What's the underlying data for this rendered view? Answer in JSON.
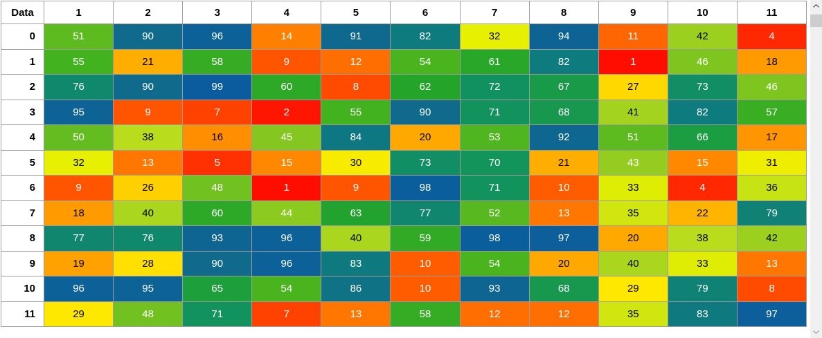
{
  "grid": {
    "corner_label": "Data",
    "column_headers": [
      "1",
      "2",
      "3",
      "4",
      "5",
      "6",
      "7",
      "8",
      "9",
      "10",
      "11"
    ],
    "row_headers": [
      "0",
      "1",
      "2",
      "3",
      "4",
      "5",
      "6",
      "7",
      "8",
      "9",
      "10",
      "11"
    ],
    "values": [
      [
        51,
        90,
        96,
        14,
        91,
        82,
        32,
        94,
        11,
        42,
        4
      ],
      [
        55,
        21,
        58,
        9,
        12,
        54,
        61,
        82,
        1,
        46,
        18
      ],
      [
        76,
        90,
        99,
        60,
        8,
        62,
        72,
        67,
        27,
        73,
        46
      ],
      [
        95,
        9,
        7,
        2,
        55,
        90,
        71,
        68,
        41,
        82,
        57
      ],
      [
        50,
        38,
        16,
        45,
        84,
        20,
        53,
        92,
        51,
        66,
        17
      ],
      [
        32,
        13,
        5,
        15,
        30,
        73,
        70,
        21,
        43,
        15,
        31
      ],
      [
        9,
        26,
        48,
        1,
        9,
        98,
        71,
        10,
        33,
        4,
        36
      ],
      [
        18,
        40,
        60,
        44,
        63,
        77,
        52,
        13,
        35,
        22,
        79
      ],
      [
        77,
        76,
        93,
        96,
        40,
        59,
        98,
        97,
        20,
        38,
        42
      ],
      [
        19,
        28,
        90,
        96,
        83,
        10,
        54,
        20,
        40,
        33,
        13
      ],
      [
        96,
        95,
        65,
        54,
        86,
        10,
        93,
        68,
        29,
        79,
        8
      ],
      [
        29,
        48,
        71,
        7,
        13,
        58,
        12,
        12,
        35,
        83,
        97
      ]
    ]
  },
  "heatmap": {
    "scale_stops": [
      {
        "value": 0,
        "color": "#FF0500"
      },
      {
        "value": 15,
        "color": "#FF8800"
      },
      {
        "value": 25,
        "color": "#FFC800"
      },
      {
        "value": 29,
        "color": "#FFE800"
      },
      {
        "value": 32,
        "color": "#E7F000"
      },
      {
        "value": 38,
        "color": "#B9DC1C"
      },
      {
        "value": 45,
        "color": "#85C720"
      },
      {
        "value": 55,
        "color": "#43B21F"
      },
      {
        "value": 62,
        "color": "#24A52A"
      },
      {
        "value": 70,
        "color": "#12945A"
      },
      {
        "value": 82,
        "color": "#0E7C7E"
      },
      {
        "value": 90,
        "color": "#0F6A8C"
      },
      {
        "value": 99,
        "color": "#0B5C9E"
      }
    ],
    "dark_text_value_range": [
      16,
      42
    ],
    "dark_text_color": "#000000",
    "light_text_color": "#FFFFFF"
  },
  "colors": {
    "grid_line": "#9D9D9D",
    "header_bg": "#FFFFFF",
    "header_text": "#000000",
    "pane_bg": "#FFFFFF"
  },
  "scrollbar": {
    "up_icon": "chevron-up",
    "down_icon": "chevron-down",
    "track_color": "#F0F0F0",
    "thumb_color": "#CDCDCD",
    "up_arrow_color": "#595959",
    "down_arrow_color": "#A6A6A6"
  }
}
